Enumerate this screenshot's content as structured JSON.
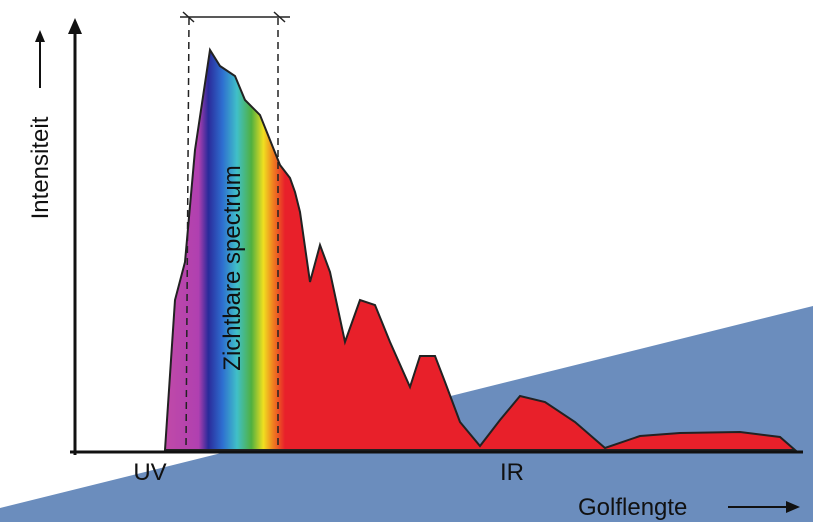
{
  "axes": {
    "y_label": "Intensiteit",
    "x_label": "Golflengte"
  },
  "regions": {
    "uv": "UV",
    "visible": "Zichtbare spectrum",
    "ir": "IR"
  }
}
